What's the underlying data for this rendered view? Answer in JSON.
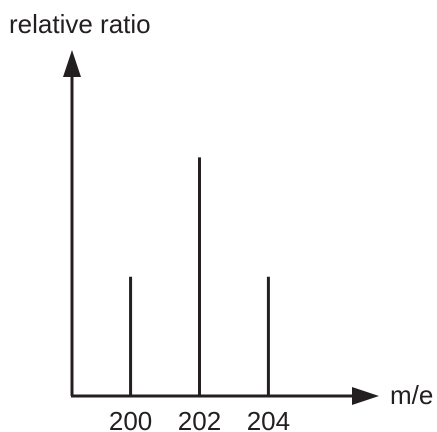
{
  "chart_data": {
    "type": "bar",
    "ylabel": "relative ratio",
    "xlabel": "m/e",
    "categories": [
      "200",
      "202",
      "204"
    ],
    "x": [
      200,
      202,
      204
    ],
    "values": [
      1,
      2,
      1
    ],
    "xlim": [
      198.3,
      206.6
    ],
    "ylim": [
      0,
      2.9
    ],
    "grid": false,
    "legend": "none"
  },
  "colors": {
    "ink": "#231f20"
  }
}
